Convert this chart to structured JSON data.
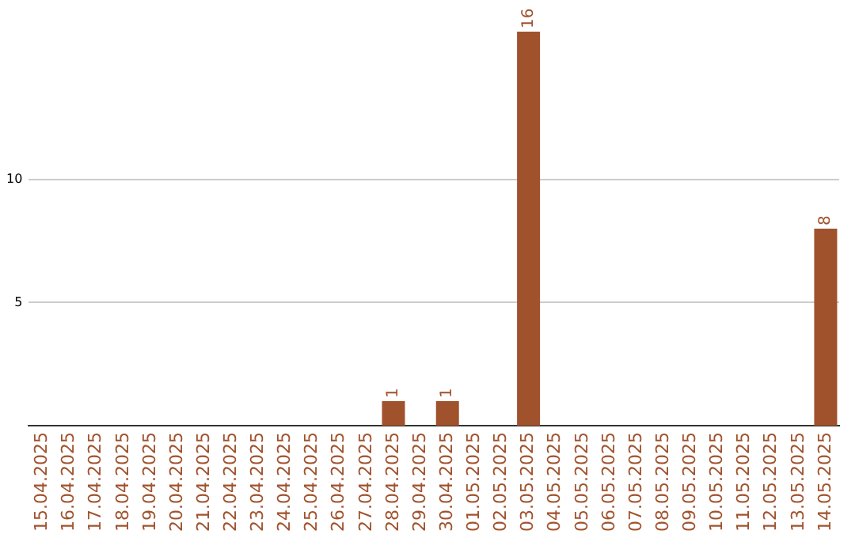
{
  "chart_data": {
    "type": "bar",
    "categories": [
      "15.04.2025",
      "16.04.2025",
      "17.04.2025",
      "18.04.2025",
      "19.04.2025",
      "20.04.2025",
      "21.04.2025",
      "22.04.2025",
      "23.04.2025",
      "24.04.2025",
      "25.04.2025",
      "26.04.2025",
      "27.04.2025",
      "28.04.2025",
      "29.04.2025",
      "30.04.2025",
      "01.05.2025",
      "02.05.2025",
      "03.05.2025",
      "04.05.2025",
      "05.05.2025",
      "06.05.2025",
      "07.05.2025",
      "08.05.2025",
      "09.05.2025",
      "10.05.2025",
      "11.05.2025",
      "12.05.2025",
      "13.05.2025",
      "14.05.2025"
    ],
    "values": [
      0,
      0,
      0,
      0,
      0,
      0,
      0,
      0,
      0,
      0,
      0,
      0,
      0,
      1,
      0,
      1,
      0,
      0,
      16,
      0,
      0,
      0,
      0,
      0,
      0,
      0,
      0,
      0,
      0,
      8
    ],
    "value_labels": [
      null,
      null,
      null,
      null,
      null,
      null,
      null,
      null,
      null,
      null,
      null,
      null,
      null,
      "1",
      null,
      "1",
      null,
      null,
      "16",
      null,
      null,
      null,
      null,
      null,
      null,
      null,
      null,
      null,
      null,
      "8"
    ],
    "color": "#a0522d",
    "ylim": [
      0,
      16
    ],
    "yticks": [
      5,
      10
    ],
    "grid": "y",
    "legend": false
  }
}
